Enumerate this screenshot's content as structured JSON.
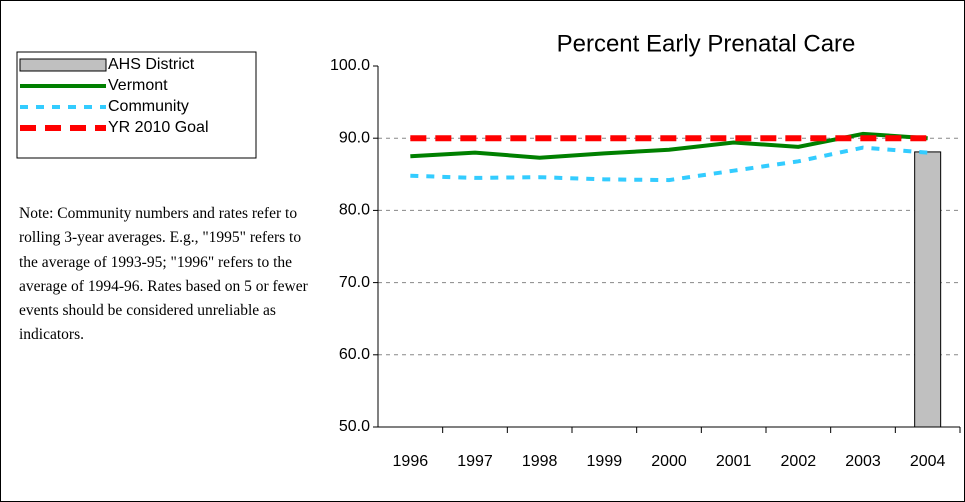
{
  "chart_data": {
    "type": "line",
    "title": "Percent Early Prenatal Care",
    "note": "Note: Community numbers and rates refer to rolling 3-year averages.  E.g., \"1995\" refers to the average of 1993-95; \"1996\" refers to the average of 1994-96.  Rates based on 5 or fewer events should be considered unreliable as indicators.",
    "categories": [
      "1996",
      "1997",
      "1998",
      "1999",
      "2000",
      "2001",
      "2002",
      "2003",
      "2004"
    ],
    "series": [
      {
        "name": "AHS District",
        "type": "bar",
        "color": "#c0c0c0",
        "values": [
          null,
          null,
          null,
          null,
          null,
          null,
          null,
          null,
          88.1
        ]
      },
      {
        "name": "Vermont",
        "type": "line",
        "line_style": "solid",
        "color": "#008000",
        "values": [
          87.5,
          88.0,
          87.3,
          87.9,
          88.4,
          89.4,
          88.8,
          90.6,
          90.0
        ]
      },
      {
        "name": "Community",
        "type": "line",
        "line_style": "dotted",
        "color": "#33ccff",
        "values": [
          84.8,
          84.5,
          84.6,
          84.3,
          84.2,
          85.5,
          86.8,
          88.7,
          88.0
        ]
      },
      {
        "name": "YR 2010 Goal",
        "type": "line",
        "line_style": "dashed",
        "color": "#ff0000",
        "values": [
          90,
          90,
          90,
          90,
          90,
          90,
          90,
          90,
          90
        ]
      }
    ],
    "ylim": [
      50,
      100
    ],
    "yticks": [
      {
        "value": 50,
        "label": "50.0"
      },
      {
        "value": 60,
        "label": "60.0"
      },
      {
        "value": 70,
        "label": "70.0"
      },
      {
        "value": 80,
        "label": "80.0"
      },
      {
        "value": 90,
        "label": "90.0"
      },
      {
        "value": 100,
        "label": "100.0"
      }
    ],
    "grid": true,
    "legend": "top-left"
  }
}
